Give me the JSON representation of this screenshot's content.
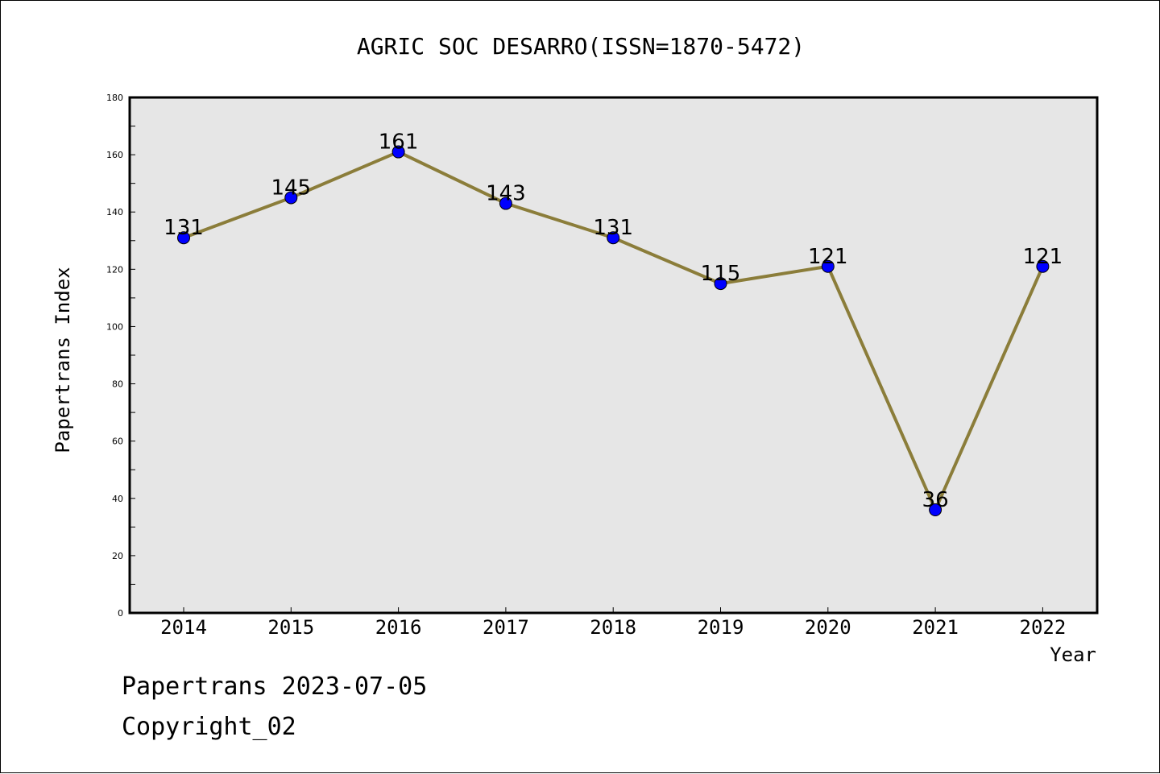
{
  "chart_data": {
    "type": "line",
    "title": "AGRIC SOC DESARRO(ISSN=1870-5472)",
    "xlabel": "Year",
    "ylabel": "Papertrans Index",
    "categories": [
      "2014",
      "2015",
      "2016",
      "2017",
      "2018",
      "2019",
      "2020",
      "2021",
      "2022"
    ],
    "values": [
      131,
      145,
      161,
      143,
      131,
      115,
      121,
      36,
      121
    ],
    "data_labels": [
      "131",
      "145",
      "161",
      "143",
      "131",
      "115",
      "121",
      "36",
      "121"
    ],
    "ylim": [
      0,
      180
    ],
    "y_ticks": [
      "0",
      "20",
      "40",
      "60",
      "80",
      "100",
      "120",
      "140",
      "160",
      "180"
    ],
    "grid": false,
    "colors": {
      "line": "#8B7D3A",
      "marker": "#0000FF",
      "plot_background": "#E6E6E6"
    }
  },
  "footer": {
    "line1": "Papertrans 2023-07-05",
    "line2": "Copyright_02"
  }
}
